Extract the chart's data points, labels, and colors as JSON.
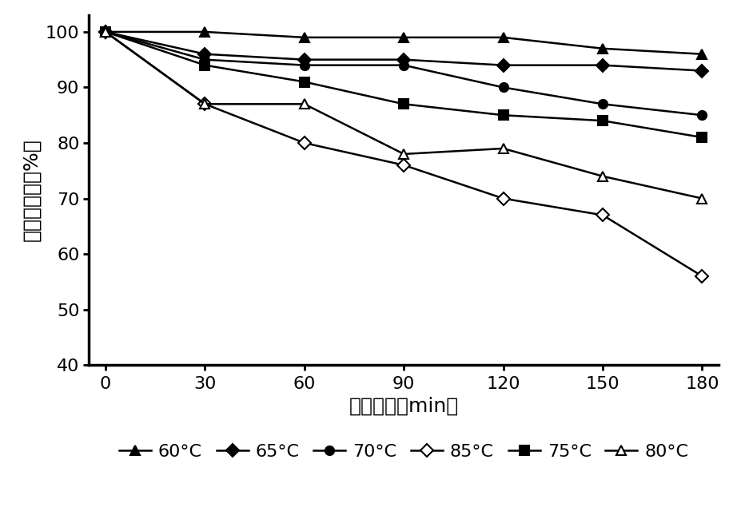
{
  "x": [
    0,
    30,
    60,
    90,
    120,
    150,
    180
  ],
  "series": [
    {
      "label": "60°C",
      "values": [
        100,
        100,
        99,
        99,
        99,
        97,
        96
      ],
      "marker": "^",
      "marker_filled": true,
      "color": "#000000"
    },
    {
      "label": "65°C",
      "values": [
        100,
        96,
        95,
        95,
        94,
        94,
        93
      ],
      "marker": "D",
      "marker_filled": true,
      "color": "#000000"
    },
    {
      "label": "70°C",
      "values": [
        100,
        95,
        94,
        94,
        90,
        87,
        85
      ],
      "marker": "o",
      "marker_filled": true,
      "color": "#000000"
    },
    {
      "label": "85°C",
      "values": [
        100,
        87,
        80,
        76,
        70,
        67,
        56
      ],
      "marker": "D",
      "marker_filled": false,
      "color": "#000000"
    },
    {
      "label": "75°C",
      "values": [
        100,
        94,
        91,
        87,
        85,
        84,
        81
      ],
      "marker": "s",
      "marker_filled": true,
      "color": "#000000"
    },
    {
      "label": "80°C",
      "values": [
        100,
        87,
        87,
        78,
        79,
        74,
        70
      ],
      "marker": "^",
      "marker_filled": false,
      "color": "#000000"
    }
  ],
  "xlabel": "处理时间（min）",
  "ylabel": "酶活保存率（%）",
  "xlim": [
    -5,
    185
  ],
  "ylim": [
    40,
    103
  ],
  "yticks": [
    40,
    50,
    60,
    70,
    80,
    90,
    100
  ],
  "xticks": [
    0,
    30,
    60,
    90,
    120,
    150,
    180
  ],
  "background_color": "#ffffff",
  "linewidth": 1.8,
  "markersize": 8,
  "axis_linewidth": 2.5,
  "tick_fontsize": 16,
  "label_fontsize": 18,
  "legend_fontsize": 16
}
